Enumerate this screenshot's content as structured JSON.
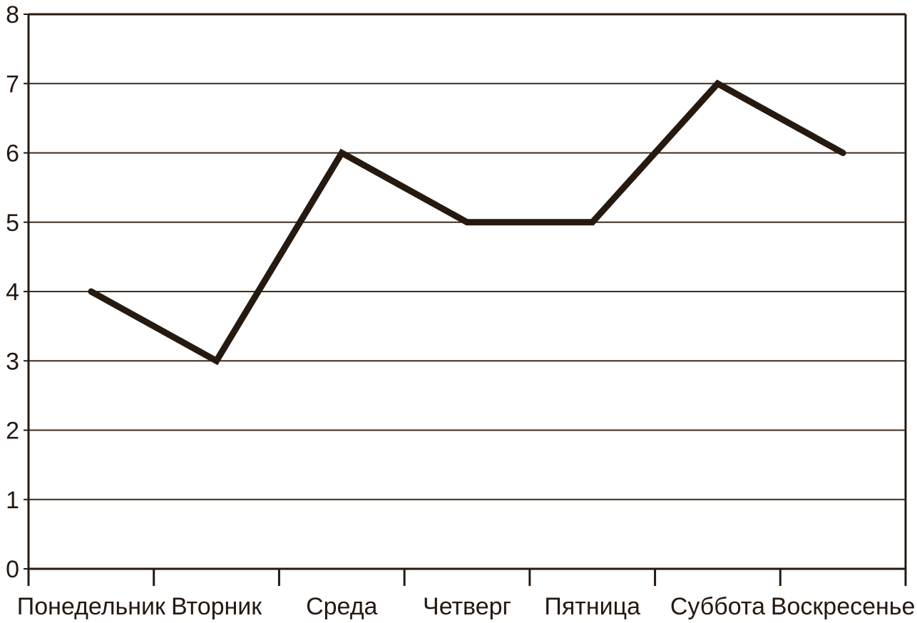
{
  "chart_data": {
    "type": "line",
    "categories": [
      "Понедельник",
      "Вторник",
      "Среда",
      "Четверг",
      "Пятница",
      "Суббота",
      "Воскресенье"
    ],
    "values": [
      4,
      3,
      6,
      5,
      5,
      7,
      6
    ],
    "title": "",
    "xlabel": "",
    "ylabel": "",
    "ylim": [
      0,
      8
    ],
    "ytick_step": 1,
    "yticks": [
      0,
      1,
      2,
      3,
      4,
      5,
      6,
      7,
      8
    ],
    "grid": true,
    "legend": "none",
    "line_color": "#261a10",
    "line_width": 9,
    "grid_color": "#3c2b1e",
    "axis_color": "#261a10",
    "text_color": "#241811",
    "background_color": "#ffffff"
  }
}
